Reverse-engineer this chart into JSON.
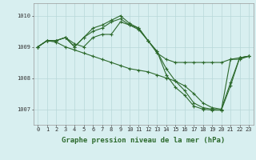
{
  "line1": {
    "x": [
      0,
      1,
      2,
      3,
      4,
      5,
      6,
      7,
      8,
      9,
      10,
      11,
      12,
      13,
      14,
      15,
      16,
      17,
      18,
      19,
      20,
      21,
      22,
      23
    ],
    "y": [
      1009.0,
      1009.2,
      1009.2,
      1009.3,
      1009.1,
      1009.0,
      1009.3,
      1009.4,
      1009.4,
      1009.8,
      1009.7,
      1009.6,
      1009.2,
      1008.8,
      1008.6,
      1008.5,
      1008.5,
      1008.5,
      1008.5,
      1008.5,
      1008.5,
      1008.6,
      1008.6,
      1008.7
    ]
  },
  "line2": {
    "x": [
      0,
      1,
      2,
      3,
      4,
      5,
      6,
      7,
      8,
      9,
      10,
      11,
      12,
      13,
      14,
      15,
      16,
      17,
      18,
      19,
      20,
      21,
      22,
      23
    ],
    "y": [
      1009.0,
      1009.2,
      1009.2,
      1009.3,
      1009.0,
      1009.3,
      1009.5,
      1009.6,
      1009.8,
      1009.9,
      1009.7,
      1009.55,
      1009.2,
      1008.85,
      1008.3,
      1007.9,
      1007.6,
      1007.2,
      1007.05,
      1007.0,
      1006.97,
      1008.6,
      1008.65,
      1008.7
    ]
  },
  "line3": {
    "x": [
      0,
      1,
      2,
      3,
      4,
      5,
      6,
      7,
      8,
      9,
      10,
      11,
      12,
      13,
      14,
      15,
      16,
      17,
      18,
      19,
      20,
      21,
      22,
      23
    ],
    "y": [
      1009.0,
      1009.2,
      1009.2,
      1009.3,
      1009.0,
      1009.3,
      1009.6,
      1009.7,
      1009.85,
      1010.0,
      1009.75,
      1009.6,
      1009.2,
      1008.85,
      1008.1,
      1007.7,
      1007.45,
      1007.1,
      1007.0,
      1006.97,
      1006.97,
      1007.75,
      1008.65,
      1008.7
    ]
  },
  "line4": {
    "x": [
      0,
      1,
      2,
      3,
      4,
      5,
      6,
      7,
      8,
      9,
      10,
      11,
      12,
      13,
      14,
      15,
      16,
      17,
      18,
      19,
      20,
      21,
      22,
      23
    ],
    "y": [
      1009.0,
      1009.2,
      1009.15,
      1009.0,
      1008.9,
      1008.8,
      1008.7,
      1008.6,
      1008.5,
      1008.4,
      1008.3,
      1008.25,
      1008.2,
      1008.1,
      1008.0,
      1007.9,
      1007.75,
      1007.5,
      1007.2,
      1007.05,
      1007.0,
      1007.85,
      1008.65,
      1008.7
    ]
  },
  "bg_color": "#d8eff0",
  "line_color": "#2d6a2d",
  "grid_color": "#b8d8d8",
  "xlabel": "Graphe pression niveau de la mer (hPa)",
  "ylabel_ticks": [
    1007,
    1008,
    1009,
    1010
  ],
  "xlim": [
    -0.5,
    23.5
  ],
  "ylim": [
    1006.5,
    1010.4
  ],
  "xtick_labels": [
    "0",
    "1",
    "2",
    "3",
    "4",
    "5",
    "6",
    "7",
    "8",
    "9",
    "10",
    "11",
    "12",
    "13",
    "14",
    "15",
    "16",
    "17",
    "18",
    "19",
    "20",
    "21",
    "22",
    "23"
  ],
  "tick_fontsize": 5,
  "xlabel_fontsize": 6.5,
  "marker": "+"
}
